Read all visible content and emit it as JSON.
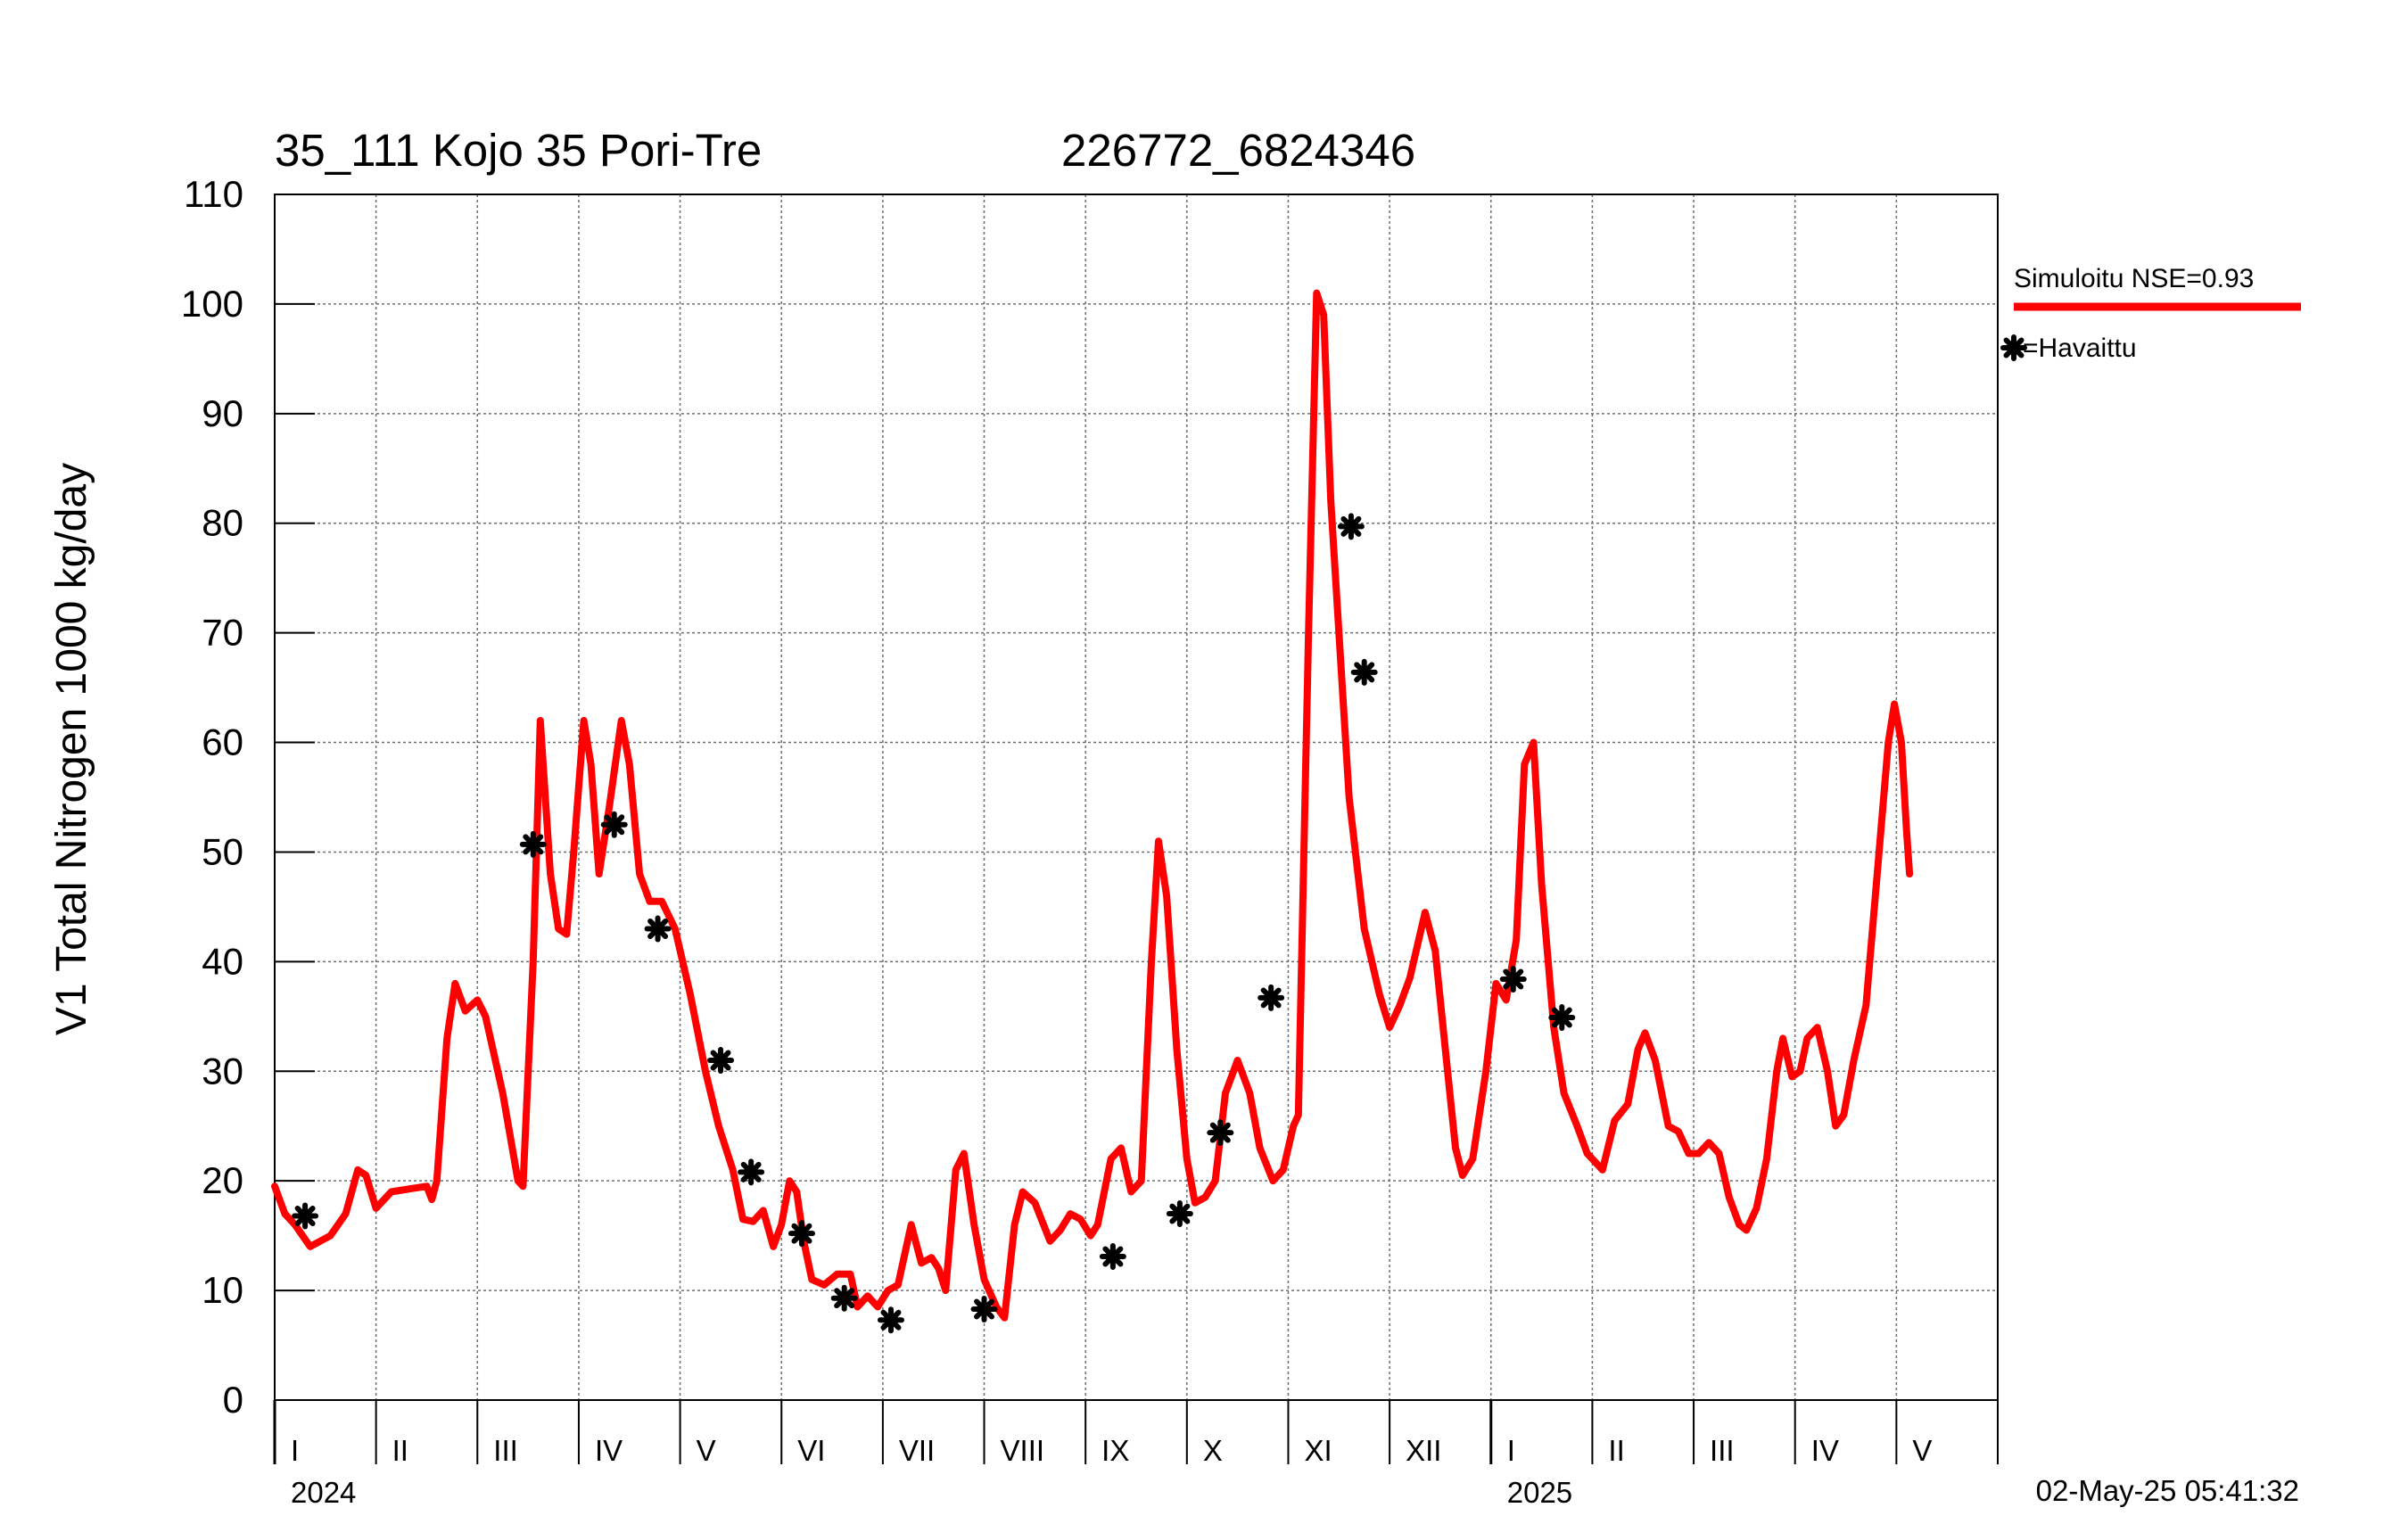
{
  "colors": {
    "simulated": "#ff0000",
    "observed": "#000000",
    "grid": "#6e6e6e",
    "axis": "#000000"
  },
  "chart_data": {
    "type": "line",
    "title_left": "35_111 Kojo 35 Pori-Tre",
    "title_right": "226772_6824346",
    "ylabel": "V1 Total Nitrogen 1000 kg/day",
    "xlabel": "",
    "ylim": [
      0,
      110
    ],
    "yticks": [
      0,
      10,
      20,
      30,
      40,
      50,
      60,
      70,
      80,
      90,
      100,
      110
    ],
    "x_unit": "months since 2024-01-01",
    "xlim": [
      0,
      17
    ],
    "month_labels": [
      "I",
      "II",
      "III",
      "IV",
      "V",
      "VI",
      "VII",
      "VIII",
      "IX",
      "X",
      "XI",
      "XII",
      "I",
      "II",
      "III",
      "IV",
      "V"
    ],
    "year_labels": [
      {
        "label": "2024",
        "x": 0
      },
      {
        "label": "2025",
        "x": 12
      }
    ],
    "grid": true,
    "legend_position": "top-right",
    "timestamp": "02-May-25 05:41:32",
    "series": [
      {
        "name": "Simuloitu NSE=0.93",
        "kind": "line",
        "color": "#ff0000",
        "points": [
          [
            0.0,
            19.5
          ],
          [
            0.1,
            17.0
          ],
          [
            0.2,
            16.0
          ],
          [
            0.35,
            14.0
          ],
          [
            0.55,
            15.0
          ],
          [
            0.7,
            17.0
          ],
          [
            0.82,
            21.0
          ],
          [
            0.9,
            20.5
          ],
          [
            1.0,
            17.5
          ],
          [
            1.15,
            19.0
          ],
          [
            1.35,
            19.3
          ],
          [
            1.5,
            19.5
          ],
          [
            1.55,
            18.3
          ],
          [
            1.6,
            20.0
          ],
          [
            1.7,
            33.0
          ],
          [
            1.78,
            38.0
          ],
          [
            1.88,
            35.5
          ],
          [
            2.0,
            36.5
          ],
          [
            2.08,
            35.0
          ],
          [
            2.25,
            28.0
          ],
          [
            2.4,
            20.0
          ],
          [
            2.45,
            19.5
          ],
          [
            2.55,
            40.0
          ],
          [
            2.62,
            62.0
          ],
          [
            2.72,
            48.0
          ],
          [
            2.8,
            43.0
          ],
          [
            2.88,
            42.5
          ],
          [
            2.95,
            50.0
          ],
          [
            3.05,
            62.0
          ],
          [
            3.12,
            58.0
          ],
          [
            3.2,
            48.0
          ],
          [
            3.3,
            54.0
          ],
          [
            3.42,
            62.0
          ],
          [
            3.5,
            58.0
          ],
          [
            3.6,
            48.0
          ],
          [
            3.7,
            45.5
          ],
          [
            3.82,
            45.5
          ],
          [
            3.95,
            43.0
          ],
          [
            4.1,
            37.0
          ],
          [
            4.25,
            30.0
          ],
          [
            4.38,
            25.0
          ],
          [
            4.52,
            21.0
          ],
          [
            4.62,
            16.5
          ],
          [
            4.72,
            16.3
          ],
          [
            4.82,
            17.3
          ],
          [
            4.92,
            14.0
          ],
          [
            5.0,
            16.0
          ],
          [
            5.08,
            20.0
          ],
          [
            5.15,
            19.0
          ],
          [
            5.22,
            14.5
          ],
          [
            5.3,
            11.0
          ],
          [
            5.42,
            10.5
          ],
          [
            5.55,
            11.5
          ],
          [
            5.68,
            11.5
          ],
          [
            5.75,
            8.5
          ],
          [
            5.85,
            9.5
          ],
          [
            5.95,
            8.5
          ],
          [
            6.05,
            10.0
          ],
          [
            6.15,
            10.5
          ],
          [
            6.28,
            16.0
          ],
          [
            6.38,
            12.5
          ],
          [
            6.48,
            13.0
          ],
          [
            6.55,
            12.0
          ],
          [
            6.62,
            10.0
          ],
          [
            6.72,
            21.0
          ],
          [
            6.8,
            22.5
          ],
          [
            6.9,
            16.0
          ],
          [
            7.0,
            11.0
          ],
          [
            7.12,
            8.5
          ],
          [
            7.2,
            7.5
          ],
          [
            7.3,
            16.0
          ],
          [
            7.38,
            19.0
          ],
          [
            7.5,
            18.0
          ],
          [
            7.65,
            14.5
          ],
          [
            7.75,
            15.5
          ],
          [
            7.85,
            17.0
          ],
          [
            7.95,
            16.5
          ],
          [
            8.05,
            15.0
          ],
          [
            8.12,
            16.0
          ],
          [
            8.25,
            22.0
          ],
          [
            8.35,
            23.0
          ],
          [
            8.45,
            19.0
          ],
          [
            8.55,
            20.0
          ],
          [
            8.65,
            40.0
          ],
          [
            8.72,
            51.0
          ],
          [
            8.8,
            46.0
          ],
          [
            8.9,
            32.0
          ],
          [
            9.0,
            22.0
          ],
          [
            9.08,
            18.0
          ],
          [
            9.18,
            18.5
          ],
          [
            9.28,
            20.0
          ],
          [
            9.38,
            28.0
          ],
          [
            9.5,
            31.0
          ],
          [
            9.62,
            28.0
          ],
          [
            9.72,
            23.0
          ],
          [
            9.85,
            20.0
          ],
          [
            9.95,
            21.0
          ],
          [
            10.05,
            25.0
          ],
          [
            10.1,
            26.0
          ],
          [
            10.2,
            70.0
          ],
          [
            10.28,
            101.0
          ],
          [
            10.35,
            99.0
          ],
          [
            10.42,
            82.0
          ],
          [
            10.5,
            70.0
          ],
          [
            10.6,
            55.0
          ],
          [
            10.75,
            43.0
          ],
          [
            10.9,
            37.0
          ],
          [
            11.0,
            34.0
          ],
          [
            11.1,
            36.0
          ],
          [
            11.2,
            38.5
          ],
          [
            11.35,
            44.5
          ],
          [
            11.45,
            41.0
          ],
          [
            11.55,
            32.0
          ],
          [
            11.65,
            23.0
          ],
          [
            11.72,
            20.5
          ],
          [
            11.82,
            22.0
          ],
          [
            11.95,
            30.0
          ],
          [
            12.05,
            38.0
          ],
          [
            12.15,
            36.5
          ],
          [
            12.25,
            42.0
          ],
          [
            12.33,
            58.0
          ],
          [
            12.42,
            60.0
          ],
          [
            12.5,
            47.0
          ],
          [
            12.62,
            34.0
          ],
          [
            12.72,
            28.0
          ],
          [
            12.85,
            25.0
          ],
          [
            12.95,
            22.5
          ],
          [
            13.1,
            21.0
          ],
          [
            13.22,
            25.5
          ],
          [
            13.35,
            27.0
          ],
          [
            13.45,
            32.0
          ],
          [
            13.52,
            33.5
          ],
          [
            13.62,
            31.0
          ],
          [
            13.75,
            25.0
          ],
          [
            13.85,
            24.5
          ],
          [
            13.95,
            22.5
          ],
          [
            14.05,
            22.5
          ],
          [
            14.15,
            23.5
          ],
          [
            14.25,
            22.5
          ],
          [
            14.35,
            18.5
          ],
          [
            14.45,
            16.0
          ],
          [
            14.52,
            15.5
          ],
          [
            14.62,
            17.5
          ],
          [
            14.72,
            22.0
          ],
          [
            14.82,
            30.0
          ],
          [
            14.88,
            33.0
          ],
          [
            14.97,
            29.5
          ],
          [
            15.05,
            30.0
          ],
          [
            15.12,
            33.0
          ],
          [
            15.22,
            34.0
          ],
          [
            15.32,
            30.0
          ],
          [
            15.4,
            25.0
          ],
          [
            15.48,
            26.0
          ],
          [
            15.58,
            31.0
          ],
          [
            15.7,
            36.0
          ],
          [
            15.82,
            49.0
          ],
          [
            15.92,
            60.0
          ],
          [
            15.98,
            63.5
          ],
          [
            16.05,
            60.0
          ],
          [
            16.1,
            52.0
          ],
          [
            16.13,
            48.0
          ]
        ]
      },
      {
        "name": "=Havaittu",
        "kind": "scatter",
        "color": "#000000",
        "points": [
          [
            0.3,
            16.8
          ],
          [
            2.55,
            50.7
          ],
          [
            3.35,
            52.5
          ],
          [
            3.78,
            43.0
          ],
          [
            4.4,
            31.0
          ],
          [
            4.7,
            20.8
          ],
          [
            5.2,
            15.2
          ],
          [
            5.62,
            9.3
          ],
          [
            6.08,
            7.3
          ],
          [
            7.0,
            8.3
          ],
          [
            8.27,
            13.1
          ],
          [
            8.93,
            17.0
          ],
          [
            9.33,
            24.4
          ],
          [
            9.83,
            36.7
          ],
          [
            10.62,
            79.7
          ],
          [
            10.75,
            66.4
          ],
          [
            12.22,
            38.4
          ],
          [
            12.7,
            34.9
          ]
        ]
      }
    ]
  }
}
